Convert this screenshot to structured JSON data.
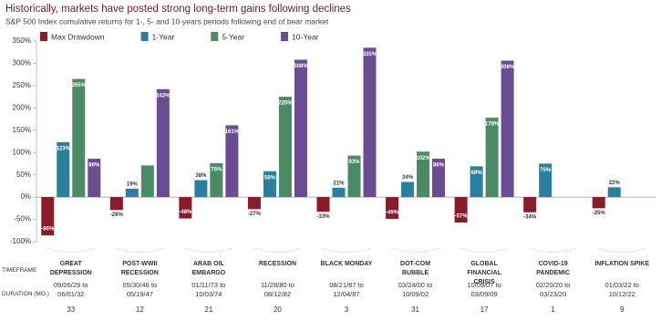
{
  "chart_data": {
    "type": "bar",
    "title": "Historically, markets have posted strong long-term gains following declines",
    "subtitle": "S&P 500 Index cumulative returns for 1-, 5- and 10-years periods following end of bear market",
    "categories": [
      "GREAT DEPRESSION",
      "POST-WWII RECESSION",
      "ARAB OIL EMBARGO",
      "RECESSION",
      "BLACK MONDAY",
      "DOT-COM BUBBLE",
      "GLOBAL FINANCIAL CRISIS",
      "COVID-19 PANDEMIC",
      "INFLATION SPIKE"
    ],
    "series": [
      {
        "name": "Max Drawdown",
        "color": "#8b1a2b",
        "values": [
          -86,
          -29,
          -48,
          -27,
          -33,
          -49,
          -57,
          -34,
          -25
        ],
        "value_labels": [
          "-86%",
          "-29%",
          "-48%",
          "-27%",
          "-33%",
          "-49%",
          "-57%",
          "-34%",
          "-25%"
        ]
      },
      {
        "name": "1-Year",
        "color": "#2a7f9e",
        "values": [
          123,
          19,
          38,
          58,
          21,
          34,
          69,
          75,
          22
        ],
        "value_labels": [
          "123%",
          "19%",
          "38%",
          "58%",
          "21%",
          "34%",
          "69%",
          "75%",
          "22%"
        ]
      },
      {
        "name": "5-Year",
        "color": "#4a8a64",
        "values": [
          265,
          71,
          76,
          225,
          93,
          102,
          178,
          null,
          null
        ],
        "value_labels": [
          "265%",
          null,
          "76%",
          "225%",
          "93%",
          "102%",
          "178%",
          null,
          null
        ]
      },
      {
        "name": "10-Year",
        "color": "#6a4c93",
        "values": [
          86,
          242,
          161,
          308,
          335,
          86,
          306,
          null,
          null
        ],
        "value_labels": [
          "86%",
          "242%",
          "161%",
          "308%",
          "335%",
          "86%",
          "306%",
          null,
          null
        ]
      }
    ],
    "ylim": [
      -100,
      350
    ],
    "yticks": [
      {
        "value": -100,
        "label": "-100%"
      },
      {
        "value": -50,
        "label": "-50%"
      },
      {
        "value": 0,
        "label": "0%"
      },
      {
        "value": 50,
        "label": "50%"
      },
      {
        "value": 100,
        "label": "100%"
      },
      {
        "value": 150,
        "label": "150%"
      },
      {
        "value": 200,
        "label": "200%"
      },
      {
        "value": 250,
        "label": "250%"
      },
      {
        "value": 300,
        "label": "300%"
      },
      {
        "value": 350,
        "label": "350%"
      }
    ],
    "legend": "top",
    "timeframe_label": "TIMEFRAME",
    "timeframes": [
      "09/06/29 to 06/01/32",
      "05/30/46 to 05/19/47",
      "01/11/73 to 10/03/74",
      "11/28/80 to 08/12/82",
      "08/21/87 to 12/04/87",
      "03/24/00 to 10/09/02",
      "10/09/07 to 03/09/09",
      "02/20/20 to 03/23/20",
      "01/03/22 to 10/12/22"
    ],
    "duration_label": "DURATION (MO.)",
    "durations": [
      33,
      12,
      21,
      20,
      3,
      31,
      17,
      1,
      9
    ]
  }
}
